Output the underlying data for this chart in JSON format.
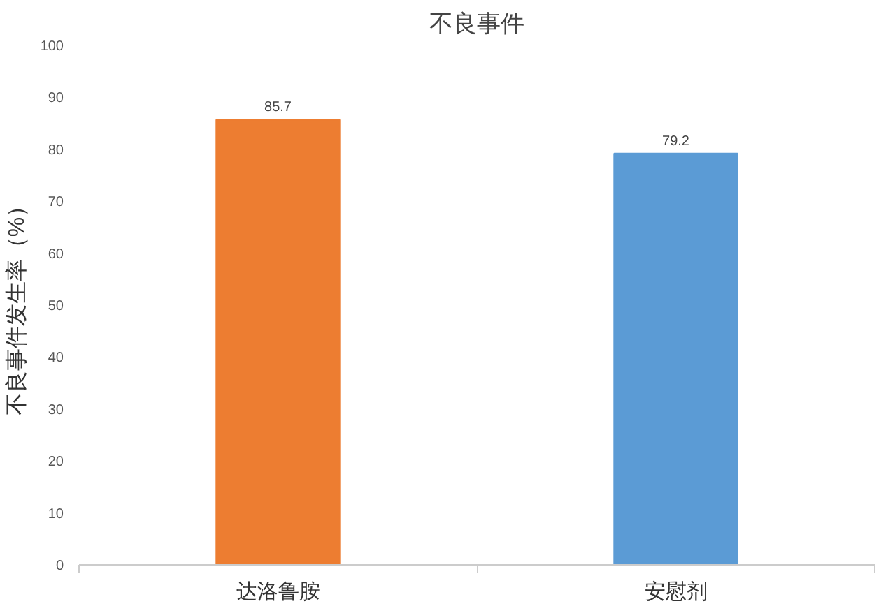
{
  "chart_data": {
    "type": "bar",
    "title": "不良事件",
    "ylabel": "不良事件发生率（%）",
    "categories": [
      "达洛鲁胺",
      "安慰剂"
    ],
    "values": [
      85.7,
      79.2
    ],
    "colors": [
      "#ed7d31",
      "#5b9bd5"
    ],
    "ylim": [
      0,
      100
    ],
    "yticks": [
      0,
      10,
      20,
      30,
      40,
      50,
      60,
      70,
      80,
      90,
      100
    ],
    "grid": false,
    "data_labels": true
  }
}
